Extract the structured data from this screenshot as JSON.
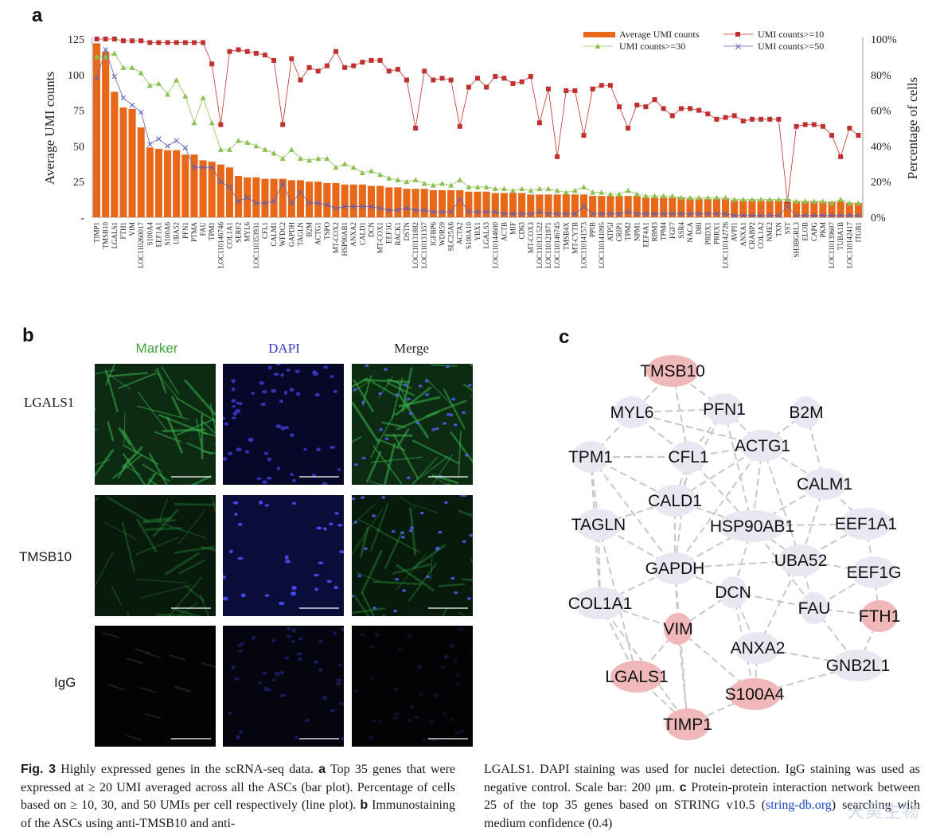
{
  "panels": {
    "a": "a",
    "b": "b",
    "c": "c"
  },
  "chart_data": {
    "type": "bar",
    "title": "",
    "ylabel": "Average UMI counts",
    "y2label": "Percentage of cells",
    "ylim": [
      0,
      125
    ],
    "y2lim": [
      0,
      100
    ],
    "yticks": [
      "125",
      "100",
      "75",
      "50",
      "25",
      "-"
    ],
    "y2ticks": [
      "100%",
      "80%",
      "60%",
      "40%",
      "20%",
      "0%"
    ],
    "legend": {
      "placement": "top-right",
      "bar": "Average UMI counts",
      "ten": "UMI counts>=10",
      "thirty": "UMI counts>=30",
      "fifty": "UMI counts>=50"
    },
    "colors": {
      "bar": "#e8681a",
      "ten": "#c0302e",
      "thirty": "#8cc152",
      "fifty": "#6060b8"
    },
    "categories": [
      "TIMP1",
      "TMSB10",
      "LGALS1",
      "FTH1",
      "VIM",
      "LOC110260017",
      "S100A4",
      "EEF1A1",
      "S100A6",
      "UBA52",
      "PFN1",
      "PTMA",
      "FAU",
      "TPM1",
      "LOC110146746",
      "COL1A1",
      "SERF2",
      "MYL6",
      "LOC110353931",
      "CFL1",
      "CALM1",
      "WFDC2",
      "GAPDH",
      "TAGLN",
      "B2M",
      "ACTG1",
      "TSPO",
      "MT-COX2",
      "HSP90AB1",
      "ANXA2",
      "CALD1",
      "DCN",
      "MT-COX1",
      "EEF1G",
      "RACK1",
      "DSTN",
      "LOC110131882",
      "LOC110131357",
      "IGFBP6",
      "WDR59",
      "SLC25A6",
      "ACTA2",
      "S100A10",
      "YBX1",
      "LGALS3",
      "LOC110144600",
      "ACTB",
      "MIF",
      "CD63",
      "MT-COX3",
      "LOC110131522",
      "LOC110121871",
      "LOC110146745",
      "TMSB4X",
      "MT-CYTB",
      "LOC110141573",
      "PPIB",
      "LOC110141095",
      "ATP5J",
      "CRIP1",
      "TPM2",
      "NPM1",
      "EEF4A1",
      "RBM3",
      "TPM4",
      "FGF7",
      "SSR4",
      "NACA",
      "DBI",
      "PRDX1",
      "PRRX1",
      "LOC110142726",
      "AVPI1",
      "ANXA1",
      "CRABP2",
      "COL1A2",
      "NME2",
      "TXN",
      "SST",
      "SH3BGRL3",
      "ELOB",
      "CAPG",
      "PKM",
      "LOC110139607",
      "TUBA1B",
      "LOC110142417",
      "ITGB1"
    ],
    "series": [
      {
        "name": "Average UMI counts",
        "values": [
          122,
          116,
          88,
          77,
          76,
          63,
          49,
          48,
          47,
          47,
          44,
          44,
          40,
          39,
          37,
          35,
          29,
          28,
          28,
          27,
          27,
          27,
          26,
          26,
          25,
          25,
          24,
          24,
          23,
          23,
          23,
          22,
          22,
          21,
          21,
          20,
          20,
          20,
          19,
          19,
          19,
          19,
          18,
          18,
          18,
          17,
          17,
          17,
          17,
          16,
          16,
          16,
          16,
          16,
          16,
          16,
          15,
          15,
          15,
          15,
          15,
          15,
          14,
          14,
          14,
          14,
          14,
          13,
          13,
          13,
          13,
          13,
          12,
          12,
          12,
          12,
          12,
          12,
          11,
          11,
          11,
          11,
          11,
          11,
          11,
          10,
          10
        ]
      },
      {
        "name": "UMI counts>=10",
        "values": [
          100,
          100,
          100,
          99,
          99,
          99,
          98,
          98,
          98,
          98,
          98,
          98,
          98,
          86,
          52,
          93,
          94,
          93,
          92,
          91,
          88,
          52,
          89,
          77,
          84,
          82,
          85,
          93,
          84,
          85,
          87,
          88,
          88,
          82,
          83,
          77,
          50,
          82,
          77,
          78,
          77,
          51,
          73,
          78,
          73,
          79,
          78,
          75,
          76,
          79,
          53,
          72,
          34,
          71,
          71,
          46,
          72,
          74,
          74,
          62,
          50,
          63,
          62,
          66,
          61,
          57,
          61,
          61,
          60,
          58,
          55,
          56,
          57,
          54,
          55,
          55,
          55,
          55,
          9,
          51,
          52,
          52,
          51,
          46,
          34,
          50,
          46
        ]
      },
      {
        "name": "UMI counts>=30",
        "values": [
          90,
          90,
          92,
          84,
          84,
          81,
          74,
          75,
          69,
          77,
          68,
          53,
          67,
          53,
          38,
          38,
          43,
          42,
          40,
          38,
          36,
          33,
          38,
          33,
          32,
          33,
          33,
          28,
          30,
          28,
          25,
          26,
          24,
          22,
          21,
          20,
          21,
          19,
          18,
          19,
          18,
          21,
          17,
          17,
          17,
          16,
          16,
          15,
          16,
          15,
          16,
          16,
          15,
          14,
          15,
          17,
          14,
          14,
          13,
          13,
          15,
          13,
          12,
          12,
          12,
          12,
          11,
          11,
          11,
          11,
          11,
          11,
          10,
          10,
          10,
          10,
          10,
          10,
          10,
          9,
          9,
          9,
          9,
          8,
          10,
          8,
          8
        ]
      },
      {
        "name": "UMI counts>=50",
        "values": [
          78,
          94,
          79,
          67,
          63,
          59,
          41,
          44,
          40,
          43,
          39,
          28,
          28,
          28,
          20,
          17,
          9,
          11,
          8,
          8,
          9,
          19,
          8,
          14,
          8,
          8,
          7,
          5,
          6,
          6,
          6,
          6,
          5,
          4,
          4,
          5,
          4,
          4,
          3,
          3,
          3,
          10,
          3,
          3,
          3,
          3,
          2,
          2,
          2,
          2,
          3,
          2,
          2,
          2,
          2,
          6,
          2,
          2,
          2,
          2,
          3,
          2,
          2,
          2,
          2,
          2,
          2,
          2,
          2,
          2,
          2,
          2,
          1,
          1,
          1,
          1,
          1,
          1,
          6,
          1,
          1,
          1,
          1,
          1,
          1,
          1,
          1
        ]
      }
    ]
  },
  "micro": {
    "cols": [
      "Marker",
      "DAPI",
      "Merge"
    ],
    "rows": [
      "LGALS1",
      "TMSB10",
      "IgG"
    ]
  },
  "network": {
    "colors": {
      "highlight": "#f0b8b8",
      "normal": "#e8e8f2",
      "edge": "#c8c8c8"
    },
    "nodes": [
      {
        "label": "TMSB10",
        "highlight": true
      },
      {
        "label": "MYL6",
        "highlight": false
      },
      {
        "label": "PFN1",
        "highlight": false
      },
      {
        "label": "B2M",
        "highlight": false
      },
      {
        "label": "TPM1",
        "highlight": false
      },
      {
        "label": "CFL1",
        "highlight": false
      },
      {
        "label": "ACTG1",
        "highlight": false
      },
      {
        "label": "CALM1",
        "highlight": false
      },
      {
        "label": "CALD1",
        "highlight": false
      },
      {
        "label": "TAGLN",
        "highlight": false
      },
      {
        "label": "HSP90AB1",
        "highlight": false
      },
      {
        "label": "EEF1A1",
        "highlight": false
      },
      {
        "label": "UBA52",
        "highlight": false
      },
      {
        "label": "GAPDH",
        "highlight": false
      },
      {
        "label": "EEF1G",
        "highlight": false
      },
      {
        "label": "DCN",
        "highlight": false
      },
      {
        "label": "COL1A1",
        "highlight": false
      },
      {
        "label": "FAU",
        "highlight": false
      },
      {
        "label": "FTH1",
        "highlight": true
      },
      {
        "label": "VIM",
        "highlight": true
      },
      {
        "label": "ANXA2",
        "highlight": false
      },
      {
        "label": "LGALS1",
        "highlight": true
      },
      {
        "label": "GNB2L1",
        "highlight": false
      },
      {
        "label": "S100A4",
        "highlight": true
      },
      {
        "label": "TIMP1",
        "highlight": true
      }
    ]
  },
  "caption": {
    "fig_label": "Fig. 3",
    "left_text": "Highly expressed genes in the scRNA-seq data.",
    "a_label": "a",
    "a_text": "Top 35 genes that were expressed at ≥ 20 UMI averaged across all the ASCs (bar plot). Percentage of cells based on ≥ 10, 30, and 50 UMIs per cell respectively (line plot).",
    "b_label": "b",
    "b_text": "Immunostaining of the ASCs using anti-TMSB10 and anti-",
    "right_text": "LGALS1. DAPI staining was used for nuclei detection. IgG staining was used as negative control. Scale bar: 200 μm.",
    "c_label": "c",
    "c_text": "Protein-protein interaction network between 25 of the top 35 genes based on STRING v10.5 (",
    "link_text": "string-db.org",
    "c_tail": ") searching with medium confidence (0.4)"
  },
  "watermark": "天昊生物"
}
